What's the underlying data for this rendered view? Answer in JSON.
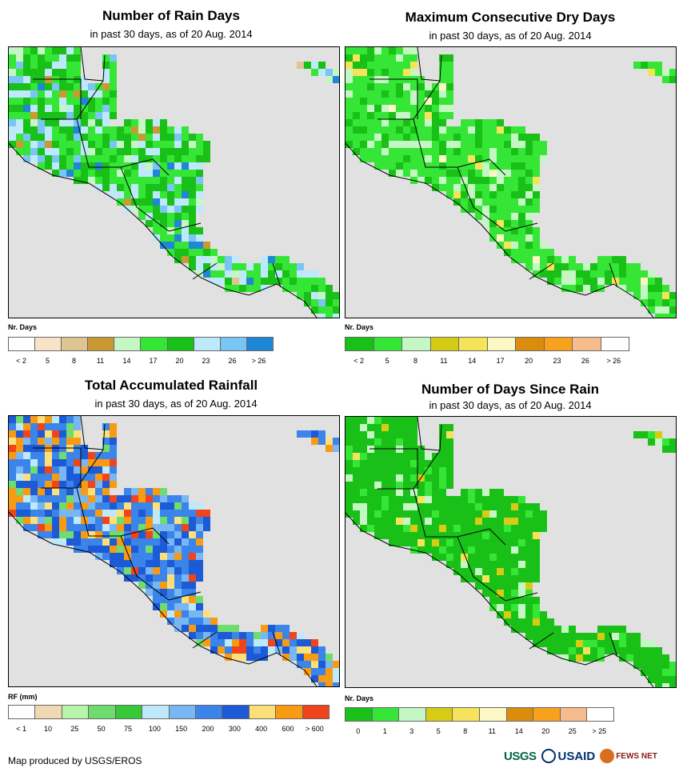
{
  "footer": "Map produced by USGS/EROS",
  "logos": {
    "usgs": "USGS",
    "usaid": "USAID",
    "fews": "FEWS NET"
  },
  "panels": [
    {
      "id": "rain-days",
      "title": "Number of Rain Days",
      "subtitle": "in past 30 days, as of 20 Aug. 2014",
      "legend_title": "Nr. Days",
      "legend_colors": [
        "#ffffff",
        "#f7e3c8",
        "#dec591",
        "#c99a33",
        "#c4f7c4",
        "#36e636",
        "#18c018",
        "#bde9fb",
        "#79c5f4",
        "#1f87d6"
      ],
      "legend_labels": [
        "< 2",
        "5",
        "8",
        "11",
        "14",
        "17",
        "20",
        "23",
        "26",
        "> 26"
      ],
      "palette": [
        "#36e636",
        "#18c018",
        "#bde9fb",
        "#79c5f4",
        "#c4f7c4",
        "#1f87d6",
        "#c99a33",
        "#dec591"
      ],
      "weights": [
        30,
        30,
        20,
        8,
        6,
        3,
        2,
        1
      ]
    },
    {
      "id": "max-dry-days",
      "title": "Maximum Consecutive Dry Days",
      "subtitle": "in past 30 days, as of 20 Aug. 2014",
      "legend_title": "Nr. Days",
      "legend_colors": [
        "#18c018",
        "#36e636",
        "#c4f7c4",
        "#d6cc16",
        "#f5e35a",
        "#fcf8c4",
        "#dc8c0c",
        "#f7a11c",
        "#f7bc8c",
        "#ffffff"
      ],
      "legend_labels": [
        "< 2",
        "5",
        "8",
        "11",
        "14",
        "17",
        "20",
        "23",
        "26",
        "> 26"
      ],
      "palette": [
        "#36e636",
        "#18c018",
        "#c4f7c4",
        "#f5e35a",
        "#fcf8c4"
      ],
      "weights": [
        55,
        25,
        15,
        3,
        2
      ]
    },
    {
      "id": "total-rainfall",
      "title": "Total Accumulated Rainfall",
      "subtitle": "in past 30 days, as of 20 Aug. 2014",
      "legend_title": "RF (mm)",
      "legend_colors": [
        "#ffffff",
        "#f0d8b4",
        "#b8f5ac",
        "#6fdc6f",
        "#36c836",
        "#bde9fb",
        "#79b6f4",
        "#3a84ea",
        "#1c5ad6",
        "#fde07a",
        "#f79a14",
        "#f0441c"
      ],
      "legend_labels": [
        "< 1",
        "10",
        "25",
        "50",
        "75",
        "100",
        "150",
        "200",
        "300",
        "400",
        "600",
        "> 600"
      ],
      "palette": [
        "#3a84ea",
        "#1c5ad6",
        "#79b6f4",
        "#f79a14",
        "#fde07a",
        "#f0441c",
        "#6fdc6f",
        "#bde9fb"
      ],
      "weights": [
        28,
        22,
        12,
        14,
        8,
        6,
        5,
        5
      ]
    },
    {
      "id": "days-since-rain",
      "title": "Number of Days Since Rain",
      "subtitle": "in past 30 days, as of 20 Aug. 2014",
      "legend_title": "Nr. Days",
      "legend_colors": [
        "#18c018",
        "#36e636",
        "#c4f7c4",
        "#d6cc16",
        "#f5e35a",
        "#fcf8c4",
        "#dc8c0c",
        "#f7a11c",
        "#f7bc8c",
        "#ffffff"
      ],
      "legend_labels": [
        "0",
        "1",
        "3",
        "5",
        "8",
        "11",
        "14",
        "20",
        "25",
        "> 25"
      ],
      "palette": [
        "#18c018",
        "#36e636",
        "#c4f7c4",
        "#d6cc16",
        "#f5e35a"
      ],
      "weights": [
        78,
        10,
        7,
        3,
        2
      ]
    }
  ]
}
